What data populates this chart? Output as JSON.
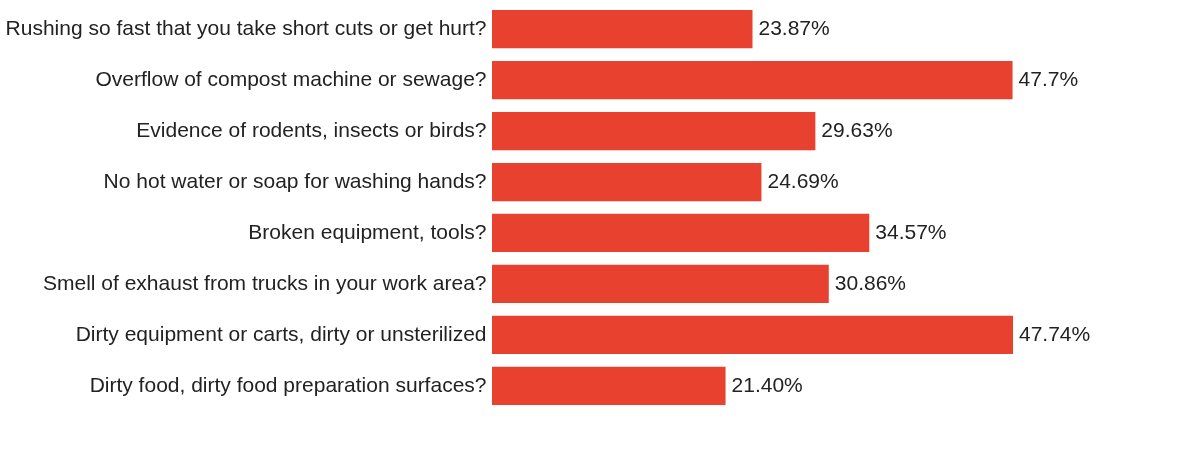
{
  "chart_data": {
    "type": "bar",
    "orientation": "horizontal",
    "categories": [
      "Rushing so fast that you take short cuts or get hurt?",
      "Overflow of compost machine or sewage?",
      "Evidence of rodents, insects or birds?",
      "No hot water or soap for washing hands?",
      "Broken equipment, tools?",
      "Smell of exhaust from trucks in your work area?",
      "Dirty equipment or carts, dirty or unsterilized",
      "Dirty food, dirty food preparation surfaces?"
    ],
    "values": [
      23.87,
      47.7,
      29.63,
      24.69,
      34.57,
      30.86,
      47.74,
      21.4
    ],
    "value_labels": [
      "23.87%",
      "47.7%",
      "29.63%",
      "24.69%",
      "34.57%",
      "30.86%",
      "47.74%",
      "21.40%"
    ],
    "color": "#e9412f",
    "grid": false
  }
}
